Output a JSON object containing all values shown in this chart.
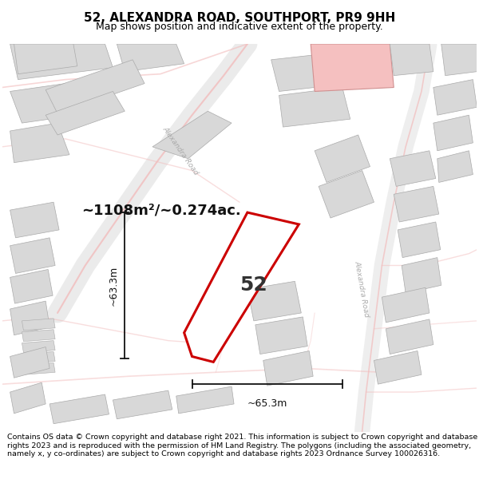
{
  "title_line1": "52, ALEXANDRA ROAD, SOUTHPORT, PR9 9HH",
  "title_line2": "Map shows position and indicative extent of the property.",
  "area_label": "~1108m²/~0.274ac.",
  "property_number": "52",
  "dim_vertical": "~63.3m",
  "dim_horizontal": "~65.3m",
  "footer_text": "Contains OS data © Crown copyright and database right 2021. This information is subject to Crown copyright and database rights 2023 and is reproduced with the permission of HM Land Registry. The polygons (including the associated geometry, namely x, y co-ordinates) are subject to Crown copyright and database rights 2023 Ordnance Survey 100026316.",
  "map_bg": "#ffffff",
  "road_pink": "#f2bcbc",
  "road_gray": "#c8c8c8",
  "bld_fill": "#d8d8d8",
  "bld_edge": "#aaaaaa",
  "hi_fill": "#f5c0c0",
  "hi_edge": "#d09090",
  "prop_stroke": "#cc0000",
  "dim_color": "#111111",
  "text_gray": "#aaaaaa",
  "label_road_upper": "Alexandra Road",
  "label_road_lower": "Alexandra Road"
}
